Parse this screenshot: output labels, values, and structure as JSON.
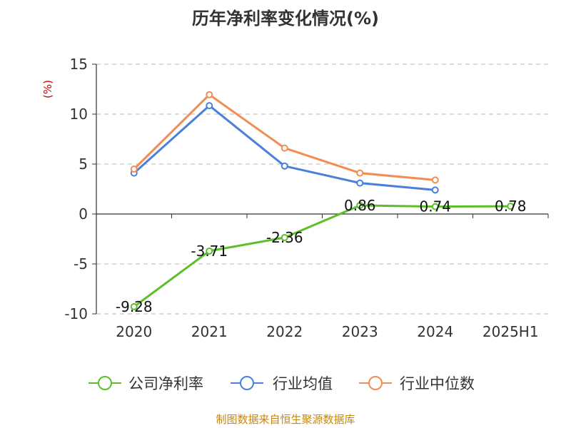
{
  "chart_data": {
    "type": "line",
    "title": "历年净利率变化情况(%)",
    "ylabel": "(%)",
    "xlabel": "",
    "categories": [
      "2020",
      "2021",
      "2022",
      "2023",
      "2024",
      "2025H1"
    ],
    "ylim": [
      -10,
      15
    ],
    "yticks": [
      15,
      10,
      5,
      0,
      -5,
      -10
    ],
    "grid": true,
    "legend": "bottom",
    "series": [
      {
        "name": "公司净利率",
        "color": "#5cbf2a",
        "values": [
          -9.28,
          -3.71,
          -2.36,
          0.86,
          0.74,
          0.78
        ],
        "labels": [
          "-9.28",
          "-3.71",
          "-2.36",
          "0.86",
          "0.74",
          "0.78"
        ]
      },
      {
        "name": "行业均值",
        "color": "#4a7fdb",
        "values": [
          4.1,
          10.85,
          4.8,
          3.1,
          2.4,
          null
        ]
      },
      {
        "name": "行业中位数",
        "color": "#f28c52",
        "values": [
          4.5,
          11.95,
          6.6,
          4.1,
          3.4,
          null
        ]
      }
    ]
  },
  "source_note": "制图数据来自恒生聚源数据库"
}
